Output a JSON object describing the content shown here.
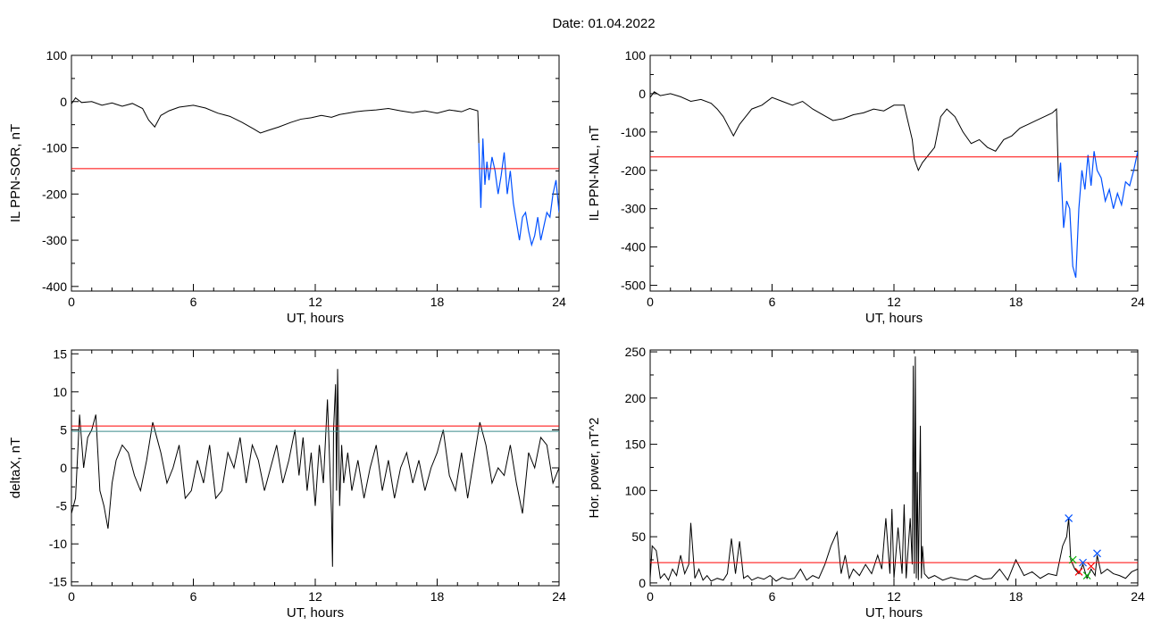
{
  "header": {
    "date_text": "Date:  01.04.2022"
  },
  "colors": {
    "trace": "#000000",
    "threshold": "#ff0000",
    "highlight": "#0050ff",
    "secondary_line": "#3a8a8a",
    "marker_green": "#00aa00",
    "marker_red": "#ff0000"
  },
  "chart_data": [
    {
      "type": "line",
      "ylabel": "IL PPN-SOR, nT",
      "xlabel": "UT, hours",
      "xlim": [
        0,
        24
      ],
      "ylim": [
        -410,
        100
      ],
      "xticks": [
        "0",
        "6",
        "12",
        "18",
        "24"
      ],
      "yticks": [
        "100",
        "0",
        "-100",
        "-200",
        "-300",
        "-400"
      ],
      "threshold": -145,
      "highlight_from": 20.1,
      "series": [
        {
          "x": [
            0,
            0.2,
            0.5,
            1,
            1.5,
            2,
            2.5,
            3,
            3.5,
            3.8,
            4.1,
            4.4,
            4.8,
            5.3,
            6,
            6.6,
            7.2,
            7.8,
            8.4,
            9,
            9.3,
            9.7,
            10.2,
            10.8,
            11.3,
            11.8,
            12.3,
            12.8,
            13.2,
            13.6,
            14,
            14.4,
            15,
            15.6,
            16.2,
            16.8,
            17.4,
            18,
            18.6,
            19.2,
            19.6,
            20,
            20.05,
            20.15,
            20.25,
            20.35,
            20.45,
            20.55,
            20.7,
            20.85,
            21,
            21.15,
            21.3,
            21.45,
            21.6,
            21.75,
            21.9,
            22.05,
            22.2,
            22.35,
            22.5,
            22.65,
            22.8,
            22.95,
            23.1,
            23.25,
            23.4,
            23.55,
            23.7,
            23.85,
            24
          ],
          "y": [
            -5,
            8,
            -2,
            0,
            -8,
            -3,
            -10,
            -4,
            -15,
            -40,
            -55,
            -30,
            -20,
            -12,
            -8,
            -14,
            -25,
            -32,
            -45,
            -60,
            -68,
            -62,
            -55,
            -45,
            -38,
            -35,
            -30,
            -34,
            -28,
            -25,
            -22,
            -20,
            -18,
            -15,
            -20,
            -24,
            -20,
            -25,
            -18,
            -22,
            -15,
            -20,
            -90,
            -230,
            -80,
            -180,
            -130,
            -170,
            -120,
            -150,
            -200,
            -160,
            -110,
            -200,
            -150,
            -220,
            -260,
            -300,
            -250,
            -240,
            -280,
            -310,
            -290,
            -250,
            -300,
            -270,
            -240,
            -250,
            -200,
            -170,
            -240
          ]
        }
      ]
    },
    {
      "type": "line",
      "ylabel": "IL PPN-NAL, nT",
      "xlabel": "UT, hours",
      "xlim": [
        0,
        24
      ],
      "ylim": [
        -515,
        100
      ],
      "xticks": [
        "0",
        "6",
        "12",
        "18",
        "24"
      ],
      "yticks": [
        "100",
        "0",
        "-100",
        "-200",
        "-300",
        "-400",
        "-500"
      ],
      "threshold": -165,
      "highlight_from": 20.1,
      "series": [
        {
          "x": [
            0,
            0.2,
            0.5,
            1,
            1.5,
            2,
            2.5,
            3,
            3.3,
            3.6,
            3.9,
            4.1,
            4.4,
            4.7,
            5,
            5.5,
            6,
            6.5,
            7,
            7.5,
            8,
            8.5,
            9,
            9.5,
            10,
            10.5,
            11,
            11.5,
            12,
            12.5,
            12.9,
            13,
            13.2,
            13.4,
            13.7,
            14,
            14.3,
            14.6,
            15,
            15.4,
            15.8,
            16.2,
            16.6,
            17,
            17.4,
            17.8,
            18.2,
            18.6,
            19,
            19.4,
            19.8,
            20,
            20.1,
            20.2,
            20.35,
            20.5,
            20.65,
            20.8,
            20.95,
            21.1,
            21.25,
            21.4,
            21.55,
            21.7,
            21.85,
            22,
            22.2,
            22.4,
            22.6,
            22.8,
            23,
            23.2,
            23.4,
            23.6,
            23.8,
            24
          ],
          "y": [
            -10,
            5,
            -5,
            0,
            -8,
            -20,
            -15,
            -25,
            -40,
            -60,
            -90,
            -110,
            -80,
            -60,
            -40,
            -30,
            -10,
            -20,
            -30,
            -20,
            -40,
            -55,
            -70,
            -65,
            -55,
            -50,
            -40,
            -45,
            -30,
            -30,
            -120,
            -170,
            -200,
            -180,
            -160,
            -140,
            -60,
            -40,
            -60,
            -100,
            -130,
            -120,
            -140,
            -150,
            -120,
            -110,
            -90,
            -80,
            -70,
            -60,
            -50,
            -40,
            -230,
            -180,
            -350,
            -280,
            -300,
            -450,
            -480,
            -300,
            -200,
            -250,
            -160,
            -240,
            -150,
            -200,
            -220,
            -280,
            -250,
            -300,
            -260,
            -290,
            -230,
            -240,
            -200,
            -150
          ]
        }
      ]
    },
    {
      "type": "line",
      "ylabel": "deltaX, nT",
      "xlabel": "UT, hours",
      "xlim": [
        0,
        24
      ],
      "ylim": [
        -15.5,
        15.5
      ],
      "xticks": [
        "0",
        "6",
        "12",
        "18",
        "24"
      ],
      "yticks": [
        "15",
        "10",
        "5",
        "0",
        "-5",
        "-10",
        "-15"
      ],
      "threshold": 5.5,
      "threshold2": 4.8,
      "series": [
        {
          "x": [
            0,
            0.2,
            0.4,
            0.6,
            0.8,
            1.0,
            1.2,
            1.4,
            1.6,
            1.8,
            2.0,
            2.2,
            2.5,
            2.8,
            3.1,
            3.4,
            3.7,
            4.0,
            4.2,
            4.4,
            4.7,
            5.0,
            5.3,
            5.6,
            5.9,
            6.2,
            6.5,
            6.8,
            7.1,
            7.4,
            7.7,
            8.0,
            8.3,
            8.6,
            8.9,
            9.2,
            9.5,
            9.8,
            10.1,
            10.4,
            10.7,
            11.0,
            11.2,
            11.4,
            11.6,
            11.8,
            12.0,
            12.2,
            12.4,
            12.6,
            12.8,
            12.85,
            12.9,
            13.0,
            13.05,
            13.1,
            13.2,
            13.3,
            13.4,
            13.6,
            13.8,
            14.1,
            14.4,
            14.7,
            15.0,
            15.3,
            15.6,
            15.9,
            16.2,
            16.5,
            16.8,
            17.1,
            17.4,
            17.7,
            18.0,
            18.3,
            18.6,
            18.9,
            19.2,
            19.5,
            19.8,
            20.1,
            20.4,
            20.7,
            21.0,
            21.3,
            21.6,
            21.9,
            22.2,
            22.5,
            22.8,
            23.1,
            23.4,
            23.7,
            24
          ],
          "y": [
            -6,
            -4,
            7,
            0,
            4,
            5,
            7,
            -3,
            -5,
            -8,
            -2,
            1,
            3,
            2,
            -1,
            -3,
            1,
            6,
            4,
            2,
            -2,
            0,
            3,
            -4,
            -3,
            1,
            -2,
            3,
            -4,
            -3,
            2,
            0,
            4,
            -2,
            3,
            1,
            -3,
            0,
            3,
            -2,
            1,
            5,
            -1,
            4,
            -3,
            2,
            -5,
            3,
            -2,
            9,
            -6,
            -13,
            5,
            11,
            -3,
            13,
            -5,
            3,
            -2,
            2,
            -3,
            1,
            -4,
            0,
            3,
            -3,
            1,
            -4,
            0,
            2,
            -2,
            1,
            -3,
            0,
            2,
            5,
            -1,
            -3,
            2,
            -4,
            1,
            6,
            3,
            -2,
            0,
            -1,
            3,
            -2,
            -6,
            2,
            0,
            4,
            3,
            -2,
            0
          ]
        }
      ]
    },
    {
      "type": "line",
      "ylabel": "Hor. power, nT^2",
      "xlabel": "UT, hours",
      "xlim": [
        0,
        24
      ],
      "ylim": [
        -3,
        252
      ],
      "xticks": [
        "0",
        "6",
        "12",
        "18",
        "24"
      ],
      "yticks": [
        "250",
        "200",
        "150",
        "100",
        "50",
        "0"
      ],
      "threshold": 22,
      "markers_blue": [
        [
          20.6,
          70
        ],
        [
          21.3,
          22
        ],
        [
          22.0,
          32
        ]
      ],
      "markers_green": [
        [
          20.8,
          25
        ],
        [
          21.5,
          8
        ]
      ],
      "markers_red": [
        [
          21.1,
          12
        ],
        [
          21.7,
          18
        ]
      ],
      "series": [
        {
          "x": [
            0,
            0.1,
            0.3,
            0.5,
            0.7,
            0.9,
            1.1,
            1.3,
            1.5,
            1.7,
            1.9,
            2.0,
            2.2,
            2.4,
            2.6,
            2.8,
            3.0,
            3.3,
            3.6,
            3.8,
            4.0,
            4.2,
            4.4,
            4.6,
            4.8,
            5.0,
            5.3,
            5.6,
            5.9,
            6.2,
            6.5,
            6.8,
            7.1,
            7.4,
            7.7,
            8.0,
            8.3,
            8.6,
            8.9,
            9.2,
            9.4,
            9.6,
            9.8,
            10.0,
            10.3,
            10.6,
            10.9,
            11.2,
            11.4,
            11.6,
            11.8,
            11.9,
            12.0,
            12.2,
            12.4,
            12.5,
            12.6,
            12.8,
            12.9,
            12.95,
            13.0,
            13.05,
            13.1,
            13.15,
            13.2,
            13.3,
            13.35,
            13.4,
            13.5,
            13.7,
            14.0,
            14.4,
            14.8,
            15.2,
            15.6,
            16.0,
            16.4,
            16.8,
            17.2,
            17.6,
            18.0,
            18.4,
            18.8,
            19.2,
            19.6,
            20.0,
            20.3,
            20.5,
            20.6,
            20.7,
            20.9,
            21.1,
            21.3,
            21.5,
            21.7,
            21.9,
            22.0,
            22.2,
            22.5,
            22.8,
            23.1,
            23.4,
            23.7,
            24
          ],
          "y": [
            5,
            40,
            35,
            5,
            10,
            3,
            15,
            8,
            30,
            10,
            20,
            65,
            5,
            15,
            3,
            8,
            2,
            5,
            3,
            10,
            48,
            10,
            45,
            5,
            8,
            3,
            6,
            4,
            8,
            2,
            6,
            4,
            5,
            15,
            3,
            8,
            5,
            20,
            40,
            55,
            10,
            30,
            5,
            15,
            8,
            20,
            10,
            30,
            15,
            70,
            10,
            80,
            5,
            60,
            10,
            85,
            5,
            70,
            20,
            235,
            10,
            245,
            5,
            120,
            3,
            170,
            5,
            40,
            10,
            5,
            8,
            3,
            6,
            4,
            3,
            8,
            4,
            5,
            15,
            3,
            25,
            8,
            12,
            5,
            10,
            8,
            40,
            50,
            70,
            25,
            15,
            10,
            20,
            5,
            15,
            8,
            30,
            10,
            15,
            10,
            8,
            5,
            12,
            15
          ]
        }
      ]
    }
  ]
}
